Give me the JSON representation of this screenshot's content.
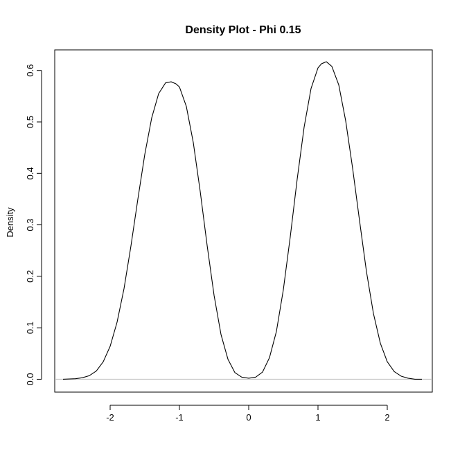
{
  "chart_data": {
    "type": "line",
    "title": "Density Plot - Phi 0.15",
    "xlabel": "",
    "ylabel": "Density",
    "xlim": [
      -2.8,
      2.65
    ],
    "ylim": [
      -0.025,
      0.64
    ],
    "x_ticks": [
      -2,
      -1,
      0,
      1,
      2
    ],
    "x_tick_labels": [
      "-2",
      "-1",
      "0",
      "1",
      "2"
    ],
    "y_ticks": [
      0.0,
      0.1,
      0.2,
      0.3,
      0.4,
      0.5,
      0.6
    ],
    "y_tick_labels": [
      "0.0",
      "0.1",
      "0.2",
      "0.3",
      "0.4",
      "0.5",
      "0.6"
    ],
    "baseline": 0,
    "baseline_color": "#bebebe",
    "line_color": "#000000",
    "grid": false,
    "series": [
      {
        "x": [
          -2.68,
          -2.5,
          -2.4,
          -2.3,
          -2.2,
          -2.1,
          -2.0,
          -1.9,
          -1.8,
          -1.7,
          -1.6,
          -1.5,
          -1.4,
          -1.3,
          -1.2,
          -1.12,
          -1.05,
          -1.0,
          -0.9,
          -0.8,
          -0.7,
          -0.6,
          -0.5,
          -0.4,
          -0.3,
          -0.2,
          -0.1,
          0.0,
          0.1,
          0.2,
          0.3,
          0.4,
          0.5,
          0.6,
          0.7,
          0.8,
          0.9,
          1.0,
          1.05,
          1.12,
          1.2,
          1.3,
          1.4,
          1.5,
          1.6,
          1.7,
          1.8,
          1.9,
          2.0,
          2.1,
          2.2,
          2.3,
          2.4,
          2.5
        ],
        "y": [
          0.0,
          0.001,
          0.003,
          0.007,
          0.016,
          0.034,
          0.064,
          0.111,
          0.176,
          0.259,
          0.35,
          0.437,
          0.508,
          0.555,
          0.576,
          0.578,
          0.574,
          0.568,
          0.53,
          0.46,
          0.365,
          0.26,
          0.163,
          0.087,
          0.039,
          0.013,
          0.004,
          0.002,
          0.004,
          0.014,
          0.042,
          0.093,
          0.174,
          0.277,
          0.389,
          0.49,
          0.565,
          0.605,
          0.613,
          0.617,
          0.608,
          0.572,
          0.502,
          0.41,
          0.308,
          0.209,
          0.128,
          0.07,
          0.034,
          0.015,
          0.006,
          0.002,
          0.0,
          0.0
        ]
      }
    ]
  }
}
